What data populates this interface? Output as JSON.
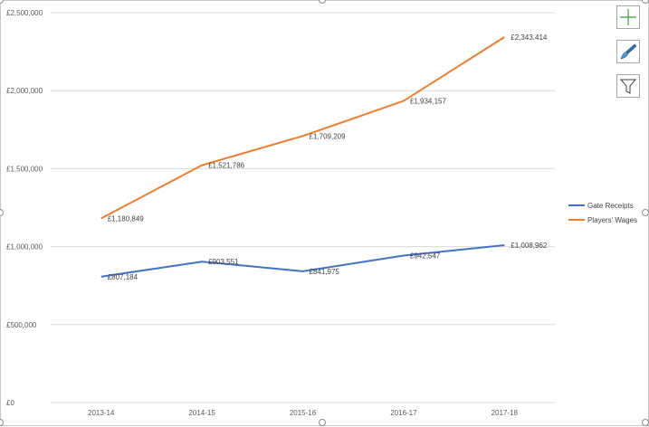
{
  "chart_data": {
    "type": "line",
    "categories": [
      "2013-14",
      "2014-15",
      "2015-16",
      "2016-17",
      "2017-18"
    ],
    "ylim": [
      0,
      2500000
    ],
    "y_ticks": [
      0,
      500000,
      1000000,
      1500000,
      2000000,
      2500000
    ],
    "y_tick_labels": [
      "£0",
      "£500,000",
      "£1,000,000",
      "£1,500,000",
      "£2,000,000",
      "£2,500,000"
    ],
    "grid": true,
    "legend_position": "right",
    "series": [
      {
        "name": "Gate Receipts",
        "color": "#4472c4",
        "values": [
          807184,
          903551,
          841975,
          942547,
          1008962
        ],
        "labels": [
          "£807,184",
          "£903,551",
          "£841,975",
          "£942,547",
          "£1,008,962"
        ]
      },
      {
        "name": "Players' Wages",
        "color": "#ed7d31",
        "values": [
          1180849,
          1521786,
          1709209,
          1934157,
          2343414
        ],
        "labels": [
          "£1,180,849",
          "£1,521,786",
          "£1,709,209",
          "£1,934,157",
          "£2,343,414"
        ]
      }
    ]
  },
  "toolbar": {
    "elements_icon": "plus-icon",
    "styles_icon": "brush-icon",
    "filters_icon": "funnel-icon"
  }
}
